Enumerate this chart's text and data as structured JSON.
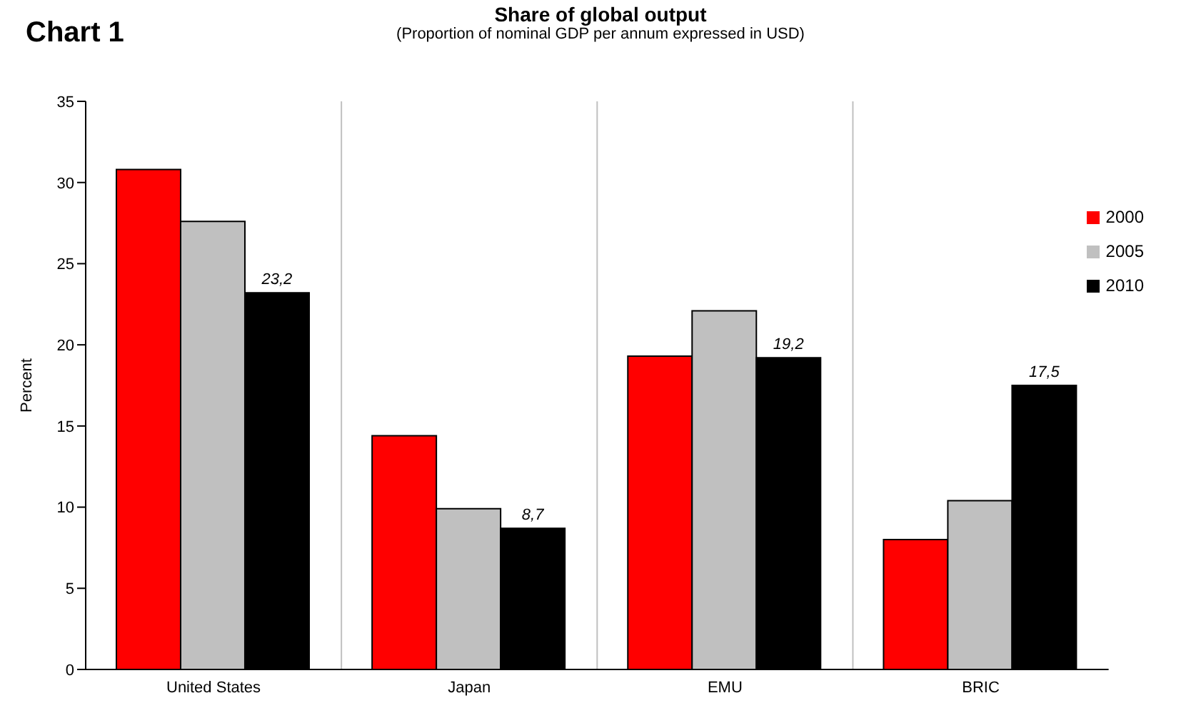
{
  "chart_data": {
    "type": "bar",
    "title": "Share of global output",
    "subtitle": "(Proportion of nominal GDP per annum expressed in USD)",
    "annotations": [
      "Chart 1"
    ],
    "ylabel": "Percent",
    "categories": [
      "United States",
      "Japan",
      "EMU",
      "BRIC"
    ],
    "series": [
      {
        "name": "2000",
        "color": "#ff0000",
        "values": [
          30.8,
          14.4,
          19.3,
          8.0
        ]
      },
      {
        "name": "2005",
        "color": "#c0c0c0",
        "values": [
          27.6,
          9.9,
          22.1,
          10.4
        ]
      },
      {
        "name": "2010",
        "color": "#000000",
        "values": [
          23.2,
          8.7,
          19.2,
          17.5
        ],
        "value_labels": [
          "23,2",
          "8,7",
          "19,2",
          "17,5"
        ]
      }
    ],
    "ylim": [
      0,
      35
    ],
    "yticks": [
      0,
      5,
      10,
      15,
      20,
      25,
      30,
      35
    ],
    "grid": "x",
    "legend": "top right"
  }
}
